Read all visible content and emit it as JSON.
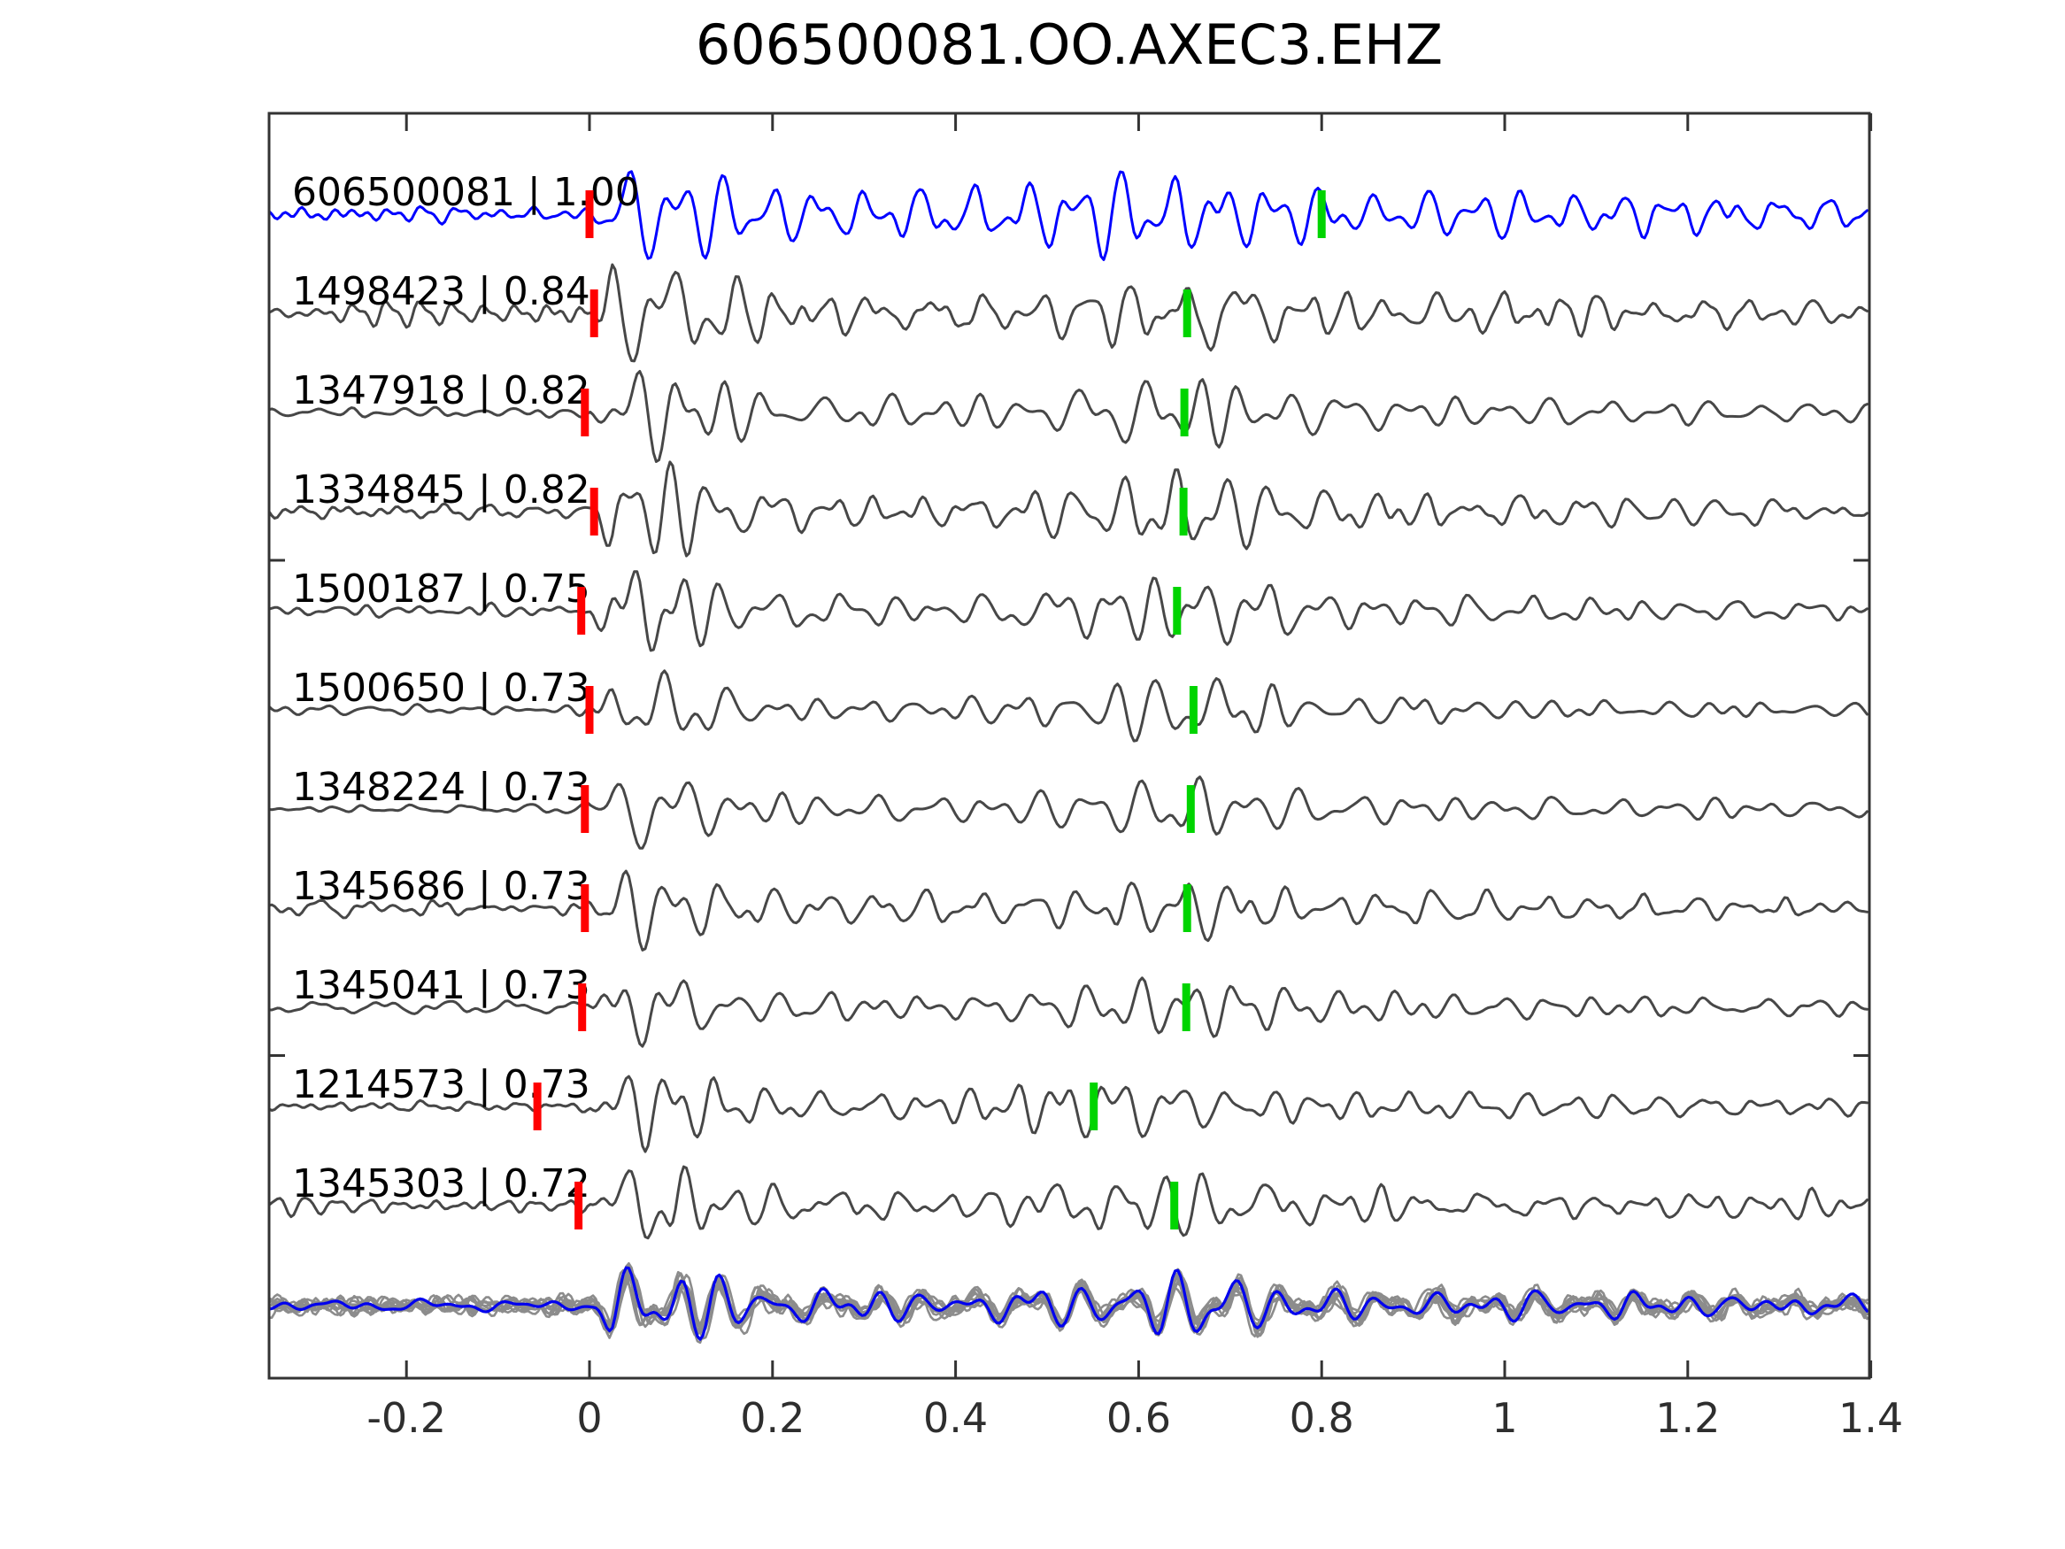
{
  "title": "606500081.OO.AXEC3.EHZ",
  "colors": {
    "template_trace": "#0000ff",
    "detection_trace": "#474747",
    "stack_gray": "#8c8c8c",
    "stack_blue": "#0000ee",
    "pick_red": "#ff0000",
    "pick_green": "#00d400",
    "axis": "#333333",
    "background": "#ffffff"
  },
  "x_axis": {
    "ticks": [
      -0.2,
      0,
      0.2,
      0.4,
      0.6,
      0.8,
      1,
      1.2,
      1.4
    ],
    "labels": [
      "-0.2",
      "0",
      "0.2",
      "0.4",
      "0.6",
      "0.8",
      "1",
      "1.2",
      "1.4"
    ],
    "range": [
      -0.35,
      1.4
    ]
  },
  "chart_data": {
    "type": "line",
    "title": "606500081.OO.AXEC3.EHZ",
    "xlabel": "",
    "ylabel": "",
    "xlim": [
      -0.35,
      1.4
    ],
    "x_ticks": [
      -0.2,
      0,
      0.2,
      0.4,
      0.6,
      0.8,
      1,
      1.2,
      1.4
    ],
    "x_tick_labels": [
      "-0.2",
      "0",
      "0.2",
      "0.4",
      "0.6",
      "0.8",
      "1",
      "1.2",
      "1.4"
    ],
    "grid": false,
    "legend": "none",
    "description": "Template-matching seismogram panel: template event on top (blue), 10 detected events below (gray), red bars = P pick near t=0, green bars = secondary pick, bottom row = aligned overlay stack of all detections (gray) with template (blue).",
    "traces": [
      {
        "id": "606500081",
        "cc": 1.0,
        "label": "606500081 | 1.00",
        "style": "template",
        "red_pick_x": 0.0,
        "green_pick_x": 0.8
      },
      {
        "id": "1498423",
        "cc": 0.84,
        "label": "1498423 | 0.84",
        "style": "detection",
        "red_pick_x": 0.005,
        "green_pick_x": 0.653
      },
      {
        "id": "1347918",
        "cc": 0.82,
        "label": "1347918 | 0.82",
        "style": "detection",
        "red_pick_x": -0.005,
        "green_pick_x": 0.65
      },
      {
        "id": "1334845",
        "cc": 0.82,
        "label": "1334845 | 0.82",
        "style": "detection",
        "red_pick_x": 0.005,
        "green_pick_x": 0.649
      },
      {
        "id": "1500187",
        "cc": 0.75,
        "label": "1500187 | 0.75",
        "style": "detection",
        "red_pick_x": -0.009,
        "green_pick_x": 0.642
      },
      {
        "id": "1500650",
        "cc": 0.73,
        "label": "1500650 | 0.73",
        "style": "detection",
        "red_pick_x": 0.0,
        "green_pick_x": 0.66
      },
      {
        "id": "1348224",
        "cc": 0.73,
        "label": "1348224 | 0.73",
        "style": "detection",
        "red_pick_x": -0.005,
        "green_pick_x": 0.657
      },
      {
        "id": "1345686",
        "cc": 0.73,
        "label": "1345686 | 0.73",
        "style": "detection",
        "red_pick_x": -0.005,
        "green_pick_x": 0.653
      },
      {
        "id": "1345041",
        "cc": 0.73,
        "label": "1345041 | 0.73",
        "style": "detection",
        "red_pick_x": -0.008,
        "green_pick_x": 0.652
      },
      {
        "id": "1214573",
        "cc": 0.73,
        "label": "1214573 | 0.73",
        "style": "detection",
        "red_pick_x": -0.057,
        "green_pick_x": 0.551
      },
      {
        "id": "1345303",
        "cc": 0.72,
        "label": "1345303 | 0.72",
        "style": "detection",
        "red_pick_x": -0.012,
        "green_pick_x": 0.639
      }
    ],
    "stack": {
      "gray_count": 10,
      "has_blue_overlay": true
    }
  }
}
